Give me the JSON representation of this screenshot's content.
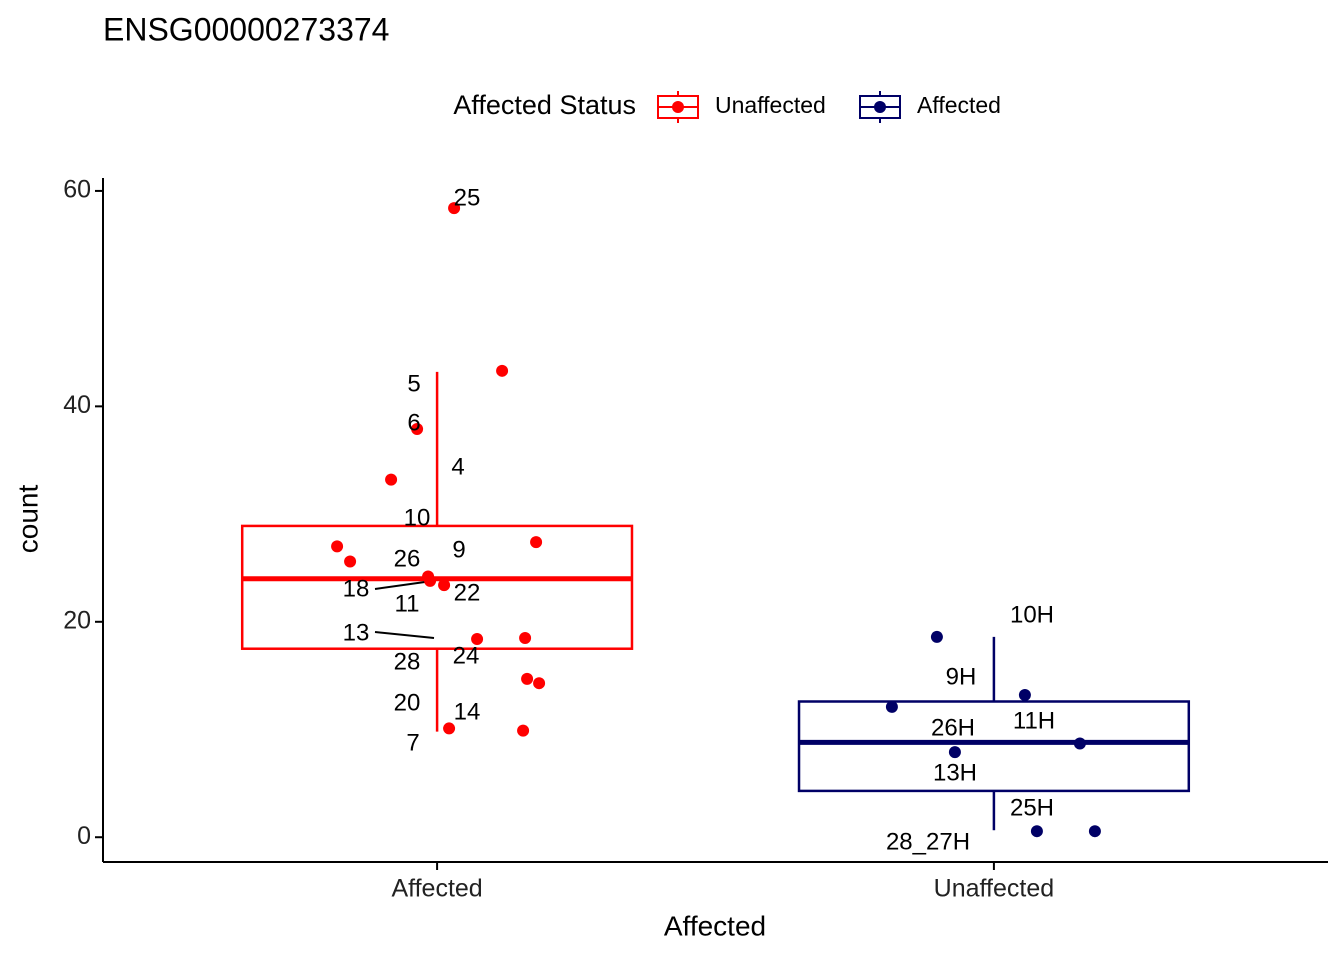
{
  "chart_data": {
    "type": "box",
    "title": "ENSG00000273374",
    "x_label": "Affected",
    "y_label": "count",
    "legend_title": "Affected Status",
    "categories": [
      "Affected",
      "Unaffected"
    ],
    "ylim": [
      -2.3,
      61.2
    ],
    "yticks": [
      0,
      20,
      40,
      60
    ],
    "series": [
      {
        "name": "Unaffected",
        "color": "#ff0000",
        "q1": 17.5,
        "median": 24.0,
        "q3": 28.9,
        "lower": 9.8,
        "upper": 43.2,
        "values": [
          58.4,
          43.3,
          37.9,
          33.2,
          27.0,
          25.6,
          27.4,
          24.2,
          23.8,
          23.4,
          18.4,
          18.5,
          14.7,
          14.3,
          10.1,
          9.9
        ],
        "labels": [
          "25",
          "5",
          "6",
          "4",
          "10",
          "26",
          "9",
          "18",
          "11",
          "22",
          "24",
          "13",
          "28",
          "20",
          "14",
          "7"
        ]
      },
      {
        "name": "Affected",
        "color": "#000066",
        "q1": 4.3,
        "median": 8.8,
        "q3": 12.6,
        "lower": 0.65,
        "upper": 18.6,
        "values": [
          18.6,
          13.2,
          12.1,
          8.7,
          7.9,
          0.56,
          0.56
        ],
        "labels": [
          "10H",
          "9H",
          "11H",
          "26H",
          "13H",
          "25H",
          "28_27H"
        ]
      }
    ]
  }
}
